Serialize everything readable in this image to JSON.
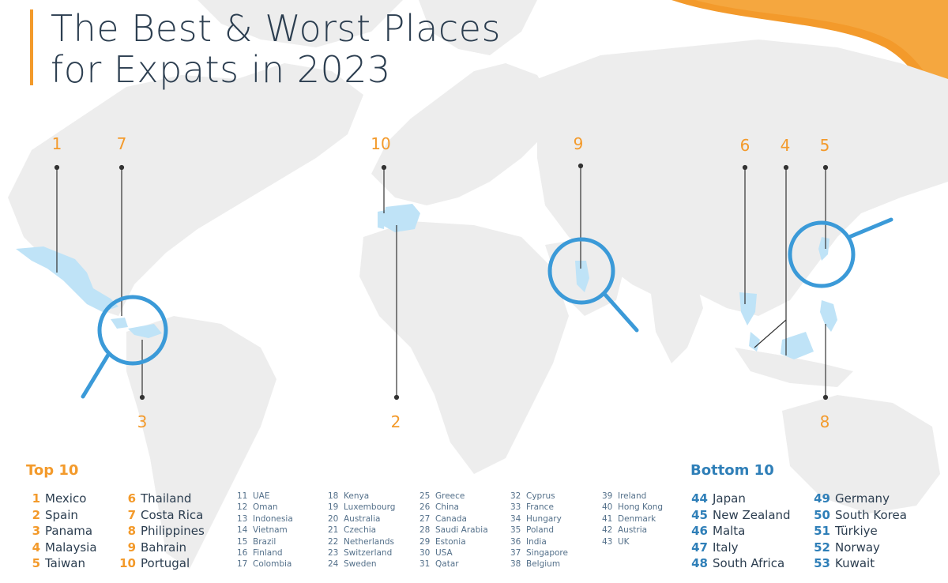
{
  "title": {
    "line1": "The Best & Worst Places",
    "line2": "for Expats in 2023"
  },
  "colors": {
    "accent_orange": "#f39a2b",
    "accent_blue": "#3b9ad8",
    "highlight_fill": "#bfe3f7",
    "land_gray": "#ededed",
    "text_dark": "#2c3e50"
  },
  "markers": [
    {
      "label": "1",
      "country": "Mexico"
    },
    {
      "label": "7",
      "country": "Costa Rica"
    },
    {
      "label": "3",
      "country": "Panama"
    },
    {
      "label": "10",
      "country": "Portugal"
    },
    {
      "label": "2",
      "country": "Spain"
    },
    {
      "label": "9",
      "country": "Bahrain"
    },
    {
      "label": "6",
      "country": "Thailand"
    },
    {
      "label": "4",
      "country": "Malaysia"
    },
    {
      "label": "5",
      "country": "Taiwan"
    },
    {
      "label": "8",
      "country": "Philippines"
    }
  ],
  "top10": {
    "heading": "Top 10",
    "col1": [
      {
        "rank": "1",
        "country": "Mexico"
      },
      {
        "rank": "2",
        "country": "Spain"
      },
      {
        "rank": "3",
        "country": "Panama"
      },
      {
        "rank": "4",
        "country": "Malaysia"
      },
      {
        "rank": "5",
        "country": "Taiwan"
      }
    ],
    "col2": [
      {
        "rank": "6",
        "country": "Thailand"
      },
      {
        "rank": "7",
        "country": "Costa Rica"
      },
      {
        "rank": "8",
        "country": "Philippines"
      },
      {
        "rank": "9",
        "country": "Bahrain"
      },
      {
        "rank": "10",
        "country": "Portugal"
      }
    ]
  },
  "middle": {
    "col1": [
      {
        "rank": "11",
        "country": "UAE"
      },
      {
        "rank": "12",
        "country": "Oman"
      },
      {
        "rank": "13",
        "country": "Indonesia"
      },
      {
        "rank": "14",
        "country": "Vietnam"
      },
      {
        "rank": "15",
        "country": "Brazil"
      },
      {
        "rank": "16",
        "country": "Finland"
      },
      {
        "rank": "17",
        "country": "Colombia"
      }
    ],
    "col2": [
      {
        "rank": "18",
        "country": "Kenya"
      },
      {
        "rank": "19",
        "country": "Luxembourg"
      },
      {
        "rank": "20",
        "country": "Australia"
      },
      {
        "rank": "21",
        "country": "Czechia"
      },
      {
        "rank": "22",
        "country": "Netherlands"
      },
      {
        "rank": "23",
        "country": "Switzerland"
      },
      {
        "rank": "24",
        "country": "Sweden"
      }
    ],
    "col3": [
      {
        "rank": "25",
        "country": "Greece"
      },
      {
        "rank": "26",
        "country": "China"
      },
      {
        "rank": "27",
        "country": "Canada"
      },
      {
        "rank": "28",
        "country": "Saudi Arabia"
      },
      {
        "rank": "29",
        "country": "Estonia"
      },
      {
        "rank": "30",
        "country": "USA"
      },
      {
        "rank": "31",
        "country": "Qatar"
      }
    ],
    "col4": [
      {
        "rank": "32",
        "country": "Cyprus"
      },
      {
        "rank": "33",
        "country": "France"
      },
      {
        "rank": "34",
        "country": "Hungary"
      },
      {
        "rank": "35",
        "country": "Poland"
      },
      {
        "rank": "36",
        "country": "India"
      },
      {
        "rank": "37",
        "country": "Singapore"
      },
      {
        "rank": "38",
        "country": "Belgium"
      }
    ],
    "col5": [
      {
        "rank": "39",
        "country": "Ireland"
      },
      {
        "rank": "40",
        "country": "Hong Kong"
      },
      {
        "rank": "41",
        "country": "Denmark"
      },
      {
        "rank": "42",
        "country": "Austria"
      },
      {
        "rank": "43",
        "country": "UK"
      }
    ]
  },
  "bottom10": {
    "heading": "Bottom 10",
    "col1": [
      {
        "rank": "44",
        "country": "Japan"
      },
      {
        "rank": "45",
        "country": "New Zealand"
      },
      {
        "rank": "46",
        "country": "Malta"
      },
      {
        "rank": "47",
        "country": "Italy"
      },
      {
        "rank": "48",
        "country": "South Africa"
      }
    ],
    "col2": [
      {
        "rank": "49",
        "country": "Germany"
      },
      {
        "rank": "50",
        "country": "South Korea"
      },
      {
        "rank": "51",
        "country": "Türkiye"
      },
      {
        "rank": "52",
        "country": "Norway"
      },
      {
        "rank": "53",
        "country": "Kuwait"
      }
    ]
  }
}
